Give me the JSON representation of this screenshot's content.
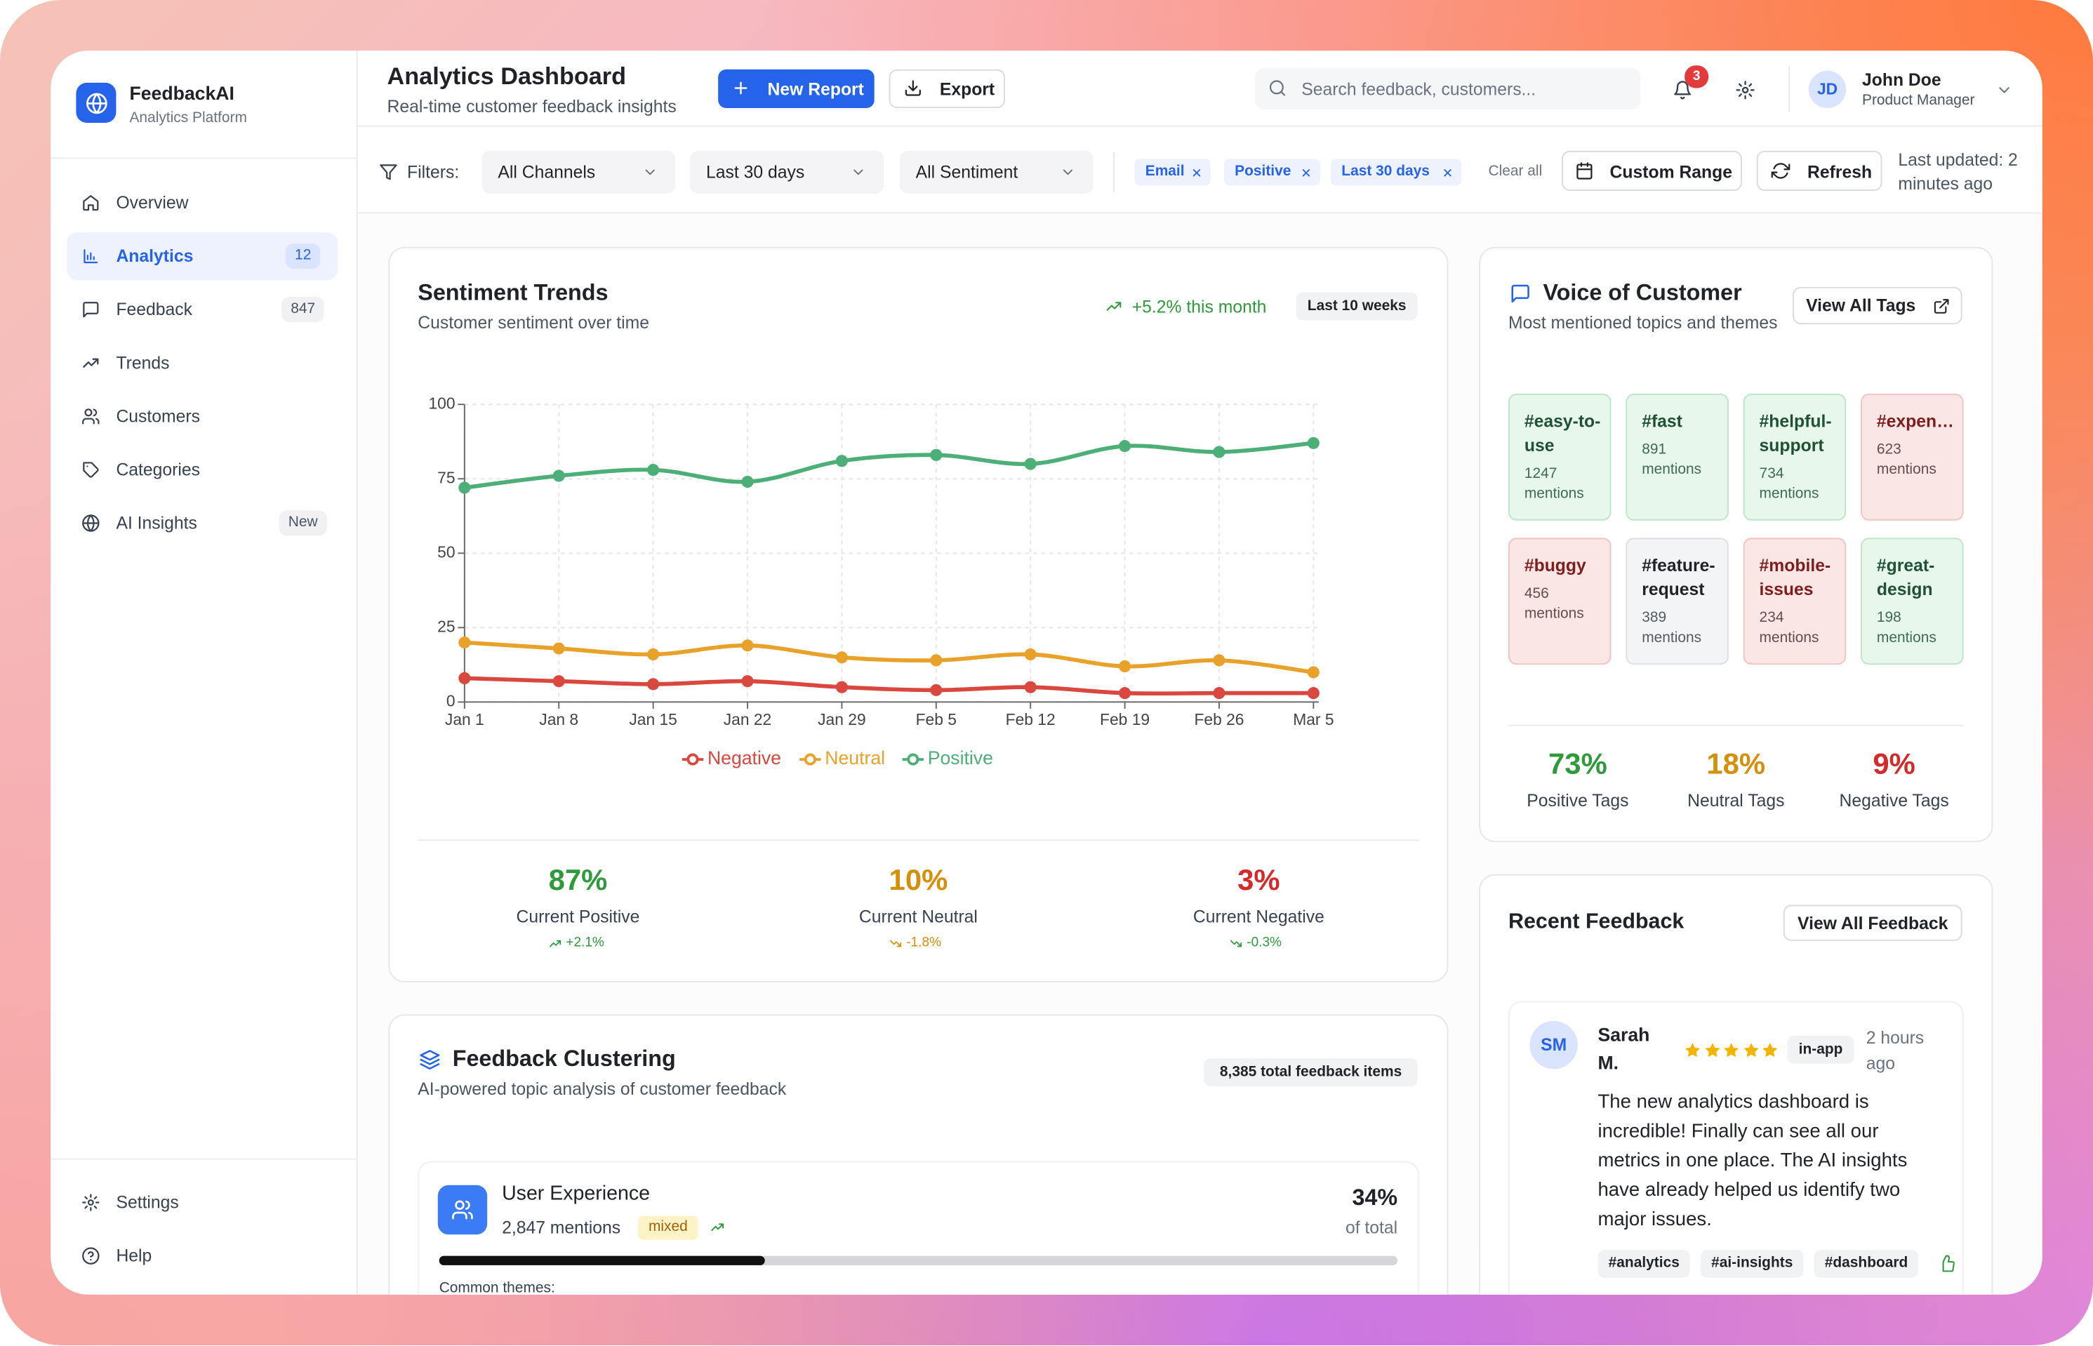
{
  "sidebar": {
    "brand": "FeedbackAI",
    "brand_sub": "Analytics Platform",
    "nav": [
      {
        "label": "Overview"
      },
      {
        "label": "Analytics",
        "badge": "12",
        "active": true
      },
      {
        "label": "Feedback",
        "badge": "847"
      },
      {
        "label": "Trends"
      },
      {
        "label": "Customers"
      },
      {
        "label": "Categories"
      },
      {
        "label": "AI Insights",
        "badge": "New"
      }
    ],
    "footer": [
      "Settings",
      "Help"
    ]
  },
  "header": {
    "title": "Analytics Dashboard",
    "subtitle": "Real-time customer feedback insights",
    "new_report": "New Report",
    "export": "Export",
    "search_placeholder": "Search feedback, customers...",
    "notifications": "3",
    "user_initials": "JD",
    "user_name": "John Doe",
    "user_role": "Product Manager"
  },
  "filters": {
    "label": "Filters:",
    "selects": [
      "All Channels",
      "Last 30 days",
      "All Sentiment"
    ],
    "chips": [
      "Email",
      "Positive",
      "Last 30 days"
    ],
    "clear": "Clear all",
    "custom_range": "Custom Range",
    "refresh": "Refresh",
    "updated": "Last updated: 2 minutes ago"
  },
  "sentiment": {
    "title": "Sentiment Trends",
    "subtitle": "Customer sentiment over time",
    "change": "+5.2% this month",
    "range": "Last 10 weeks",
    "chart": {
      "type": "line",
      "categories": [
        "Jan 1",
        "Jan 8",
        "Jan 15",
        "Jan 22",
        "Jan 29",
        "Feb 5",
        "Feb 12",
        "Feb 19",
        "Feb 26",
        "Mar 5"
      ],
      "series": [
        {
          "name": "Negative",
          "color": "#d9473f",
          "values": [
            8,
            7,
            6,
            7,
            5,
            4,
            5,
            3,
            3,
            3
          ]
        },
        {
          "name": "Neutral",
          "color": "#e9a229",
          "values": [
            20,
            18,
            16,
            19,
            15,
            14,
            16,
            12,
            14,
            10
          ]
        },
        {
          "name": "Positive",
          "color": "#4caf78",
          "values": [
            72,
            76,
            78,
            74,
            81,
            83,
            80,
            86,
            84,
            87
          ]
        }
      ],
      "ylim": [
        0,
        100
      ],
      "yticks": [
        0,
        25,
        50,
        75,
        100
      ],
      "grid": true
    },
    "stats": [
      {
        "value": "87%",
        "label": "Current Positive",
        "change": "+2.1%",
        "color": "#2e9a3a"
      },
      {
        "value": "10%",
        "label": "Current Neutral",
        "change": "-1.8%",
        "color": "#d4900a"
      },
      {
        "value": "3%",
        "label": "Current Negative",
        "change": "-0.3%",
        "color": "#d42a2a"
      }
    ]
  },
  "voice": {
    "title": "Voice of Customer",
    "subtitle": "Most mentioned topics and themes",
    "button": "View All Tags",
    "tags": [
      {
        "tag": "#easy-to-use",
        "mentions": "1247 mentions",
        "tone": "positive"
      },
      {
        "tag": "#fast",
        "mentions": "891 mentions",
        "tone": "positive"
      },
      {
        "tag": "#helpful-support",
        "mentions": "734 mentions",
        "tone": "positive"
      },
      {
        "tag": "#expen…",
        "mentions": "623 mentions",
        "tone": "negative"
      },
      {
        "tag": "#buggy",
        "mentions": "456 mentions",
        "tone": "negative"
      },
      {
        "tag": "#feature-request",
        "mentions": "389 mentions",
        "tone": "neutral"
      },
      {
        "tag": "#mobile-issues",
        "mentions": "234 mentions",
        "tone": "negative"
      },
      {
        "tag": "#great-design",
        "mentions": "198 mentions",
        "tone": "positive"
      }
    ],
    "stats": [
      {
        "value": "73%",
        "label": "Positive Tags",
        "color": "#2e9a3a"
      },
      {
        "value": "18%",
        "label": "Neutral Tags",
        "color": "#d4900a"
      },
      {
        "value": "9%",
        "label": "Negative Tags",
        "color": "#d42a2a"
      }
    ]
  },
  "clustering": {
    "title": "Feedback Clustering",
    "subtitle": "AI-powered topic analysis of customer feedback",
    "total": "8,385 total feedback items",
    "cluster": {
      "name": "User Experience",
      "mentions": "2,847 mentions",
      "tag": "mixed",
      "share": 34,
      "share_label": "34%",
      "share_caption": "of total",
      "themes_label": "Common themes:"
    }
  },
  "recent": {
    "title": "Recent Feedback",
    "button": "View All Feedback",
    "item": {
      "initials": "SM",
      "name": "Sarah M.",
      "rating": 5,
      "channel": "in-app",
      "time": "2 hours ago",
      "text": "The new analytics dashboard is incredible! Finally can see all our metrics in one place. The AI insights have already helped us identify two major issues.",
      "tags": [
        "#analytics",
        "#ai-insights",
        "#dashboard"
      ]
    }
  }
}
